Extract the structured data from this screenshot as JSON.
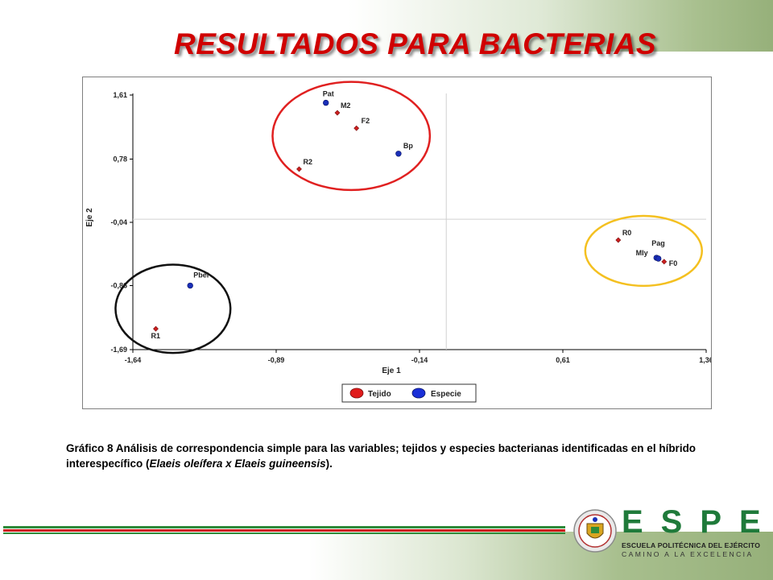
{
  "slide": {
    "title": "RESULTADOS PARA BACTERIAS"
  },
  "caption": {
    "part1": "Gráfico 8 Análisis  de correspondencia simple para las variables; tejidos y especies bacterianas identificadas en el híbrido interespecífico (",
    "italic": "Elaeis oleífera x Elaeis guineensis",
    "part2": ")."
  },
  "logo": {
    "letters": "ESPE",
    "name": "ESCUELA POLITÉCNICA DEL EJÉRCITO",
    "motto": "CAMINO A LA EXCELENCIA"
  },
  "colors": {
    "title": "#d00000",
    "tejido": "#cc1f1f",
    "especie": "#1a2fb8",
    "circle_red": "#e02020",
    "circle_black": "#111111",
    "circle_yellow": "#f4c020",
    "footer_green": "#2e8b3a",
    "footer_red": "#d01515"
  },
  "chart_data": {
    "type": "scatter",
    "xlabel": "Eje 1",
    "ylabel": "Eje 2",
    "xlim": [
      -1.64,
      1.36
    ],
    "ylim": [
      -1.69,
      1.61
    ],
    "xticks": [
      "-1,64",
      "-0,89",
      "-0,14",
      "0,61",
      "1,36"
    ],
    "xtick_values": [
      -1.64,
      -0.89,
      -0.14,
      0.61,
      1.36
    ],
    "yticks": [
      "1,61",
      "0,78",
      "-0,04",
      "-0,86",
      "-1,69"
    ],
    "ytick_values": [
      1.61,
      0.78,
      -0.04,
      -0.86,
      -1.69
    ],
    "reference_lines": {
      "x": 0.0,
      "y": 0.0
    },
    "legend": {
      "position": "bottom",
      "entries": [
        "Tejido",
        "Especie"
      ]
    },
    "series": [
      {
        "name": "Tejido",
        "points": [
          {
            "label": "M2",
            "x": -0.57,
            "y": 1.38
          },
          {
            "label": "F2",
            "x": -0.47,
            "y": 1.18
          },
          {
            "label": "R2",
            "x": -0.77,
            "y": 0.65
          },
          {
            "label": "R0",
            "x": 0.9,
            "y": -0.27
          },
          {
            "label": "F0",
            "x": 1.14,
            "y": -0.55
          },
          {
            "label": "R1",
            "x": -1.52,
            "y": -1.42
          }
        ]
      },
      {
        "name": "Especie",
        "points": [
          {
            "label": "Pat",
            "x": -0.63,
            "y": 1.51
          },
          {
            "label": "Bp",
            "x": -0.25,
            "y": 0.85
          },
          {
            "label": "Pag",
            "x": 1.1,
            "y": -0.5
          },
          {
            "label": "Mly",
            "x": 1.11,
            "y": -0.51
          },
          {
            "label": "Pbei",
            "x": -1.34,
            "y": -0.86
          }
        ]
      }
    ],
    "clusters": [
      {
        "color": "red",
        "members": [
          "Pat",
          "M2",
          "F2",
          "Bp",
          "R2"
        ]
      },
      {
        "color": "black",
        "members": [
          "Pbei",
          "R1"
        ]
      },
      {
        "color": "yellow",
        "members": [
          "R0",
          "Pag",
          "Mly",
          "F0"
        ]
      }
    ]
  }
}
